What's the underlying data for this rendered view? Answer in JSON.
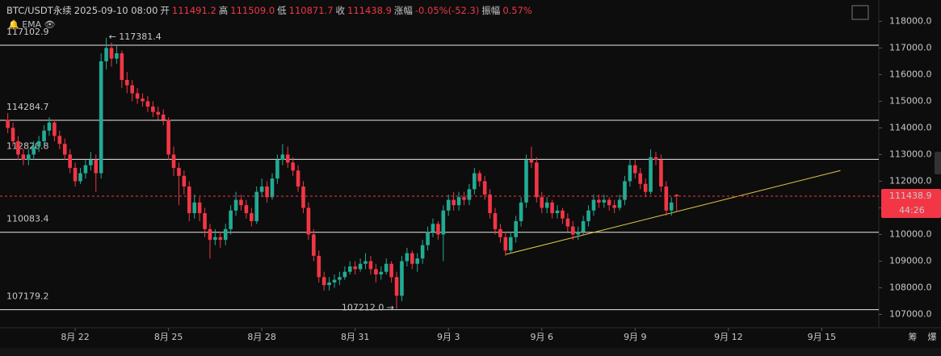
{
  "header": {
    "symbol": "BTC/USDT永续",
    "time": "2025-09-10 08:00",
    "fields": [
      {
        "label": "开",
        "value": "111491.2"
      },
      {
        "label": "高",
        "value": "111509.0"
      },
      {
        "label": "低",
        "value": "110871.7"
      },
      {
        "label": "收",
        "value": "111438.9"
      },
      {
        "label": "涨幅",
        "value": "-0.05%(-52.3)"
      },
      {
        "label": "振幅",
        "value": "0.57%"
      }
    ]
  },
  "indicator": "EMA",
  "footer": [
    "筹",
    "爆"
  ],
  "chart_data": {
    "type": "candlestick",
    "up_color": "#22ab94",
    "down_color": "#f23645",
    "ylim": [
      106500,
      118800
    ],
    "yticks": [
      {
        "value": 107000,
        "label": "107000.0"
      },
      {
        "value": 108000,
        "label": "108000.0"
      },
      {
        "value": 109000,
        "label": "109000.0"
      },
      {
        "value": 110000,
        "label": "110000.0"
      },
      {
        "value": 111000,
        "label": "111000.0"
      },
      {
        "value": 112000,
        "label": "112000.0"
      },
      {
        "value": 113000,
        "label": "113000.0"
      },
      {
        "value": 114000,
        "label": "114000.0"
      },
      {
        "value": 115000,
        "label": "115000.0"
      },
      {
        "value": 116000,
        "label": "116000.0"
      },
      {
        "value": 117000,
        "label": "117000.0"
      },
      {
        "value": 118000,
        "label": "118000.0"
      }
    ],
    "xlim": [
      -1.5,
      168
    ],
    "xticks": [
      {
        "value": 13,
        "label": "8月 22"
      },
      {
        "value": 31,
        "label": "8月 25"
      },
      {
        "value": 49,
        "label": "8月 28"
      },
      {
        "value": 67,
        "label": "8月 31"
      },
      {
        "value": 85,
        "label": "9月 3"
      },
      {
        "value": 103,
        "label": "9月 6"
      },
      {
        "value": 121,
        "label": "9月 9"
      },
      {
        "value": 139,
        "label": "9月 12"
      },
      {
        "value": 157,
        "label": "9月 15"
      }
    ],
    "levels": [
      117102.9,
      114284.7,
      112820.8,
      110083.4,
      107179.2
    ],
    "high_note": {
      "index": 19,
      "value": 117381.4,
      "label": "← 117381.4"
    },
    "low_note": {
      "index": 75,
      "value": 107212.0,
      "label": "107212.0 →"
    },
    "last": {
      "value": 111438.9,
      "label": "111438.9"
    },
    "countdown": "44:26",
    "trendline": {
      "x": [
        96,
        160.6
      ],
      "y": [
        109250,
        112400
      ],
      "color": "#e6c84a"
    },
    "candles": [
      [
        114300,
        114550,
        113800,
        114000
      ],
      [
        114000,
        114200,
        113300,
        113500
      ],
      [
        113500,
        113700,
        112800,
        113000
      ],
      [
        113000,
        113200,
        112600,
        112800
      ],
      [
        112800,
        113200,
        112600,
        113000
      ],
      [
        113000,
        113500,
        112800,
        113300
      ],
      [
        113300,
        113700,
        113100,
        113500
      ],
      [
        113500,
        114100,
        113300,
        113900
      ],
      [
        113900,
        114400,
        113700,
        114200
      ],
      [
        114200,
        114300,
        113500,
        113700
      ],
      [
        113700,
        113900,
        113200,
        113400
      ],
      [
        113400,
        113600,
        112800,
        113000
      ],
      [
        113000,
        113200,
        112300,
        112500
      ],
      [
        112500,
        112700,
        111800,
        112000
      ],
      [
        112000,
        112500,
        111900,
        112300
      ],
      [
        112300,
        112800,
        112100,
        112600
      ],
      [
        112600,
        113100,
        112400,
        112800
      ],
      [
        112800,
        113000,
        111600,
        112300
      ],
      [
        112300,
        116800,
        112100,
        116500
      ],
      [
        116500,
        117381.4,
        116200,
        117000
      ],
      [
        117000,
        117200,
        116300,
        116600
      ],
      [
        116600,
        117100,
        116400,
        116800
      ],
      [
        116800,
        116900,
        115500,
        115800
      ],
      [
        115800,
        116100,
        115300,
        115600
      ],
      [
        115600,
        115800,
        115000,
        115300
      ],
      [
        115300,
        115500,
        114900,
        115100
      ],
      [
        115100,
        115300,
        114800,
        115000
      ],
      [
        115000,
        115200,
        114600,
        114800
      ],
      [
        114800,
        115000,
        114400,
        114600
      ],
      [
        114600,
        114800,
        114300,
        114500
      ],
      [
        114500,
        114700,
        114100,
        114300
      ],
      [
        114300,
        114400,
        112800,
        113000
      ],
      [
        113000,
        113300,
        112200,
        112500
      ],
      [
        112500,
        112700,
        111100,
        112200
      ],
      [
        112200,
        112400,
        111500,
        111800
      ],
      [
        111800,
        112000,
        110500,
        110800
      ],
      [
        110800,
        111500,
        110600,
        111200
      ],
      [
        111200,
        111400,
        110500,
        110800
      ],
      [
        110800,
        111000,
        109900,
        110200
      ],
      [
        110200,
        110400,
        109100,
        109800
      ],
      [
        109800,
        110200,
        109600,
        109900
      ],
      [
        109900,
        110100,
        109500,
        109800
      ],
      [
        109800,
        110400,
        109600,
        110200
      ],
      [
        110200,
        111100,
        110000,
        110900
      ],
      [
        110900,
        111600,
        110700,
        111300
      ],
      [
        111300,
        111500,
        110900,
        111100
      ],
      [
        111100,
        111300,
        110600,
        110800
      ],
      [
        110800,
        111000,
        110300,
        110500
      ],
      [
        110500,
        111800,
        110400,
        111600
      ],
      [
        111600,
        112100,
        111400,
        111800
      ],
      [
        111800,
        112000,
        111200,
        111400
      ],
      [
        111400,
        112300,
        111300,
        112100
      ],
      [
        112100,
        113000,
        111900,
        112800
      ],
      [
        112800,
        113400,
        112600,
        113000
      ],
      [
        113000,
        113300,
        112500,
        112700
      ],
      [
        112700,
        112900,
        112200,
        112400
      ],
      [
        112400,
        112600,
        111600,
        111800
      ],
      [
        111800,
        112000,
        110800,
        111000
      ],
      [
        111000,
        111200,
        109800,
        110000
      ],
      [
        110000,
        110200,
        109000,
        109200
      ],
      [
        109200,
        109400,
        108200,
        108400
      ],
      [
        108400,
        108600,
        107900,
        108100
      ],
      [
        108100,
        108400,
        107900,
        108200
      ],
      [
        108200,
        108500,
        108000,
        108300
      ],
      [
        108300,
        108600,
        108100,
        108400
      ],
      [
        108400,
        108800,
        108300,
        108600
      ],
      [
        108600,
        109000,
        108500,
        108800
      ],
      [
        108800,
        109000,
        108500,
        108700
      ],
      [
        108700,
        109100,
        108600,
        108900
      ],
      [
        108900,
        109300,
        108700,
        109000
      ],
      [
        109000,
        109200,
        108500,
        108700
      ],
      [
        108700,
        108900,
        108200,
        108500
      ],
      [
        108500,
        108800,
        108300,
        108600
      ],
      [
        108600,
        109100,
        108500,
        108900
      ],
      [
        108900,
        109000,
        108200,
        108400
      ],
      [
        108400,
        108600,
        107212.0,
        107700
      ],
      [
        107700,
        109200,
        107500,
        109000
      ],
      [
        109000,
        109500,
        108800,
        109300
      ],
      [
        109300,
        109400,
        108700,
        108900
      ],
      [
        108900,
        109300,
        108600,
        109100
      ],
      [
        109100,
        109800,
        108900,
        109600
      ],
      [
        109600,
        110300,
        109400,
        110100
      ],
      [
        110100,
        110600,
        109900,
        110400
      ],
      [
        110400,
        110500,
        109800,
        110000
      ],
      [
        110000,
        111100,
        109000,
        110900
      ],
      [
        110900,
        111500,
        110700,
        111300
      ],
      [
        111300,
        111600,
        110900,
        111100
      ],
      [
        111100,
        111600,
        110900,
        111400
      ],
      [
        111400,
        111600,
        111100,
        111300
      ],
      [
        111300,
        111900,
        111100,
        111700
      ],
      [
        111700,
        112500,
        111500,
        112300
      ],
      [
        112300,
        112400,
        111800,
        112000
      ],
      [
        112000,
        112200,
        111300,
        111500
      ],
      [
        111500,
        111700,
        110600,
        110800
      ],
      [
        110800,
        111000,
        110000,
        110200
      ],
      [
        110200,
        110400,
        109700,
        109900
      ],
      [
        109900,
        110100,
        109200,
        109400
      ],
      [
        109400,
        110100,
        109300,
        109900
      ],
      [
        109900,
        110700,
        109700,
        110500
      ],
      [
        110500,
        111400,
        110300,
        111200
      ],
      [
        111200,
        113000,
        111000,
        112800
      ],
      [
        112800,
        113300,
        112500,
        112700
      ],
      [
        112700,
        112900,
        111200,
        111400
      ],
      [
        111400,
        111600,
        110800,
        111000
      ],
      [
        111000,
        111400,
        110800,
        111200
      ],
      [
        111200,
        111300,
        110600,
        110800
      ],
      [
        110800,
        111100,
        110600,
        110900
      ],
      [
        110900,
        111000,
        110400,
        110600
      ],
      [
        110600,
        110800,
        110100,
        110300
      ],
      [
        110300,
        110500,
        109800,
        110000
      ],
      [
        110000,
        110300,
        109800,
        110100
      ],
      [
        110100,
        110700,
        110000,
        110500
      ],
      [
        110500,
        111100,
        110300,
        110900
      ],
      [
        110900,
        111500,
        110700,
        111300
      ],
      [
        111300,
        111500,
        111000,
        111200
      ],
      [
        111200,
        111500,
        111000,
        111300
      ],
      [
        111300,
        111400,
        110900,
        111100
      ],
      [
        111100,
        111300,
        110800,
        111000
      ],
      [
        111000,
        111500,
        110900,
        111300
      ],
      [
        111300,
        112200,
        111100,
        112000
      ],
      [
        112000,
        112800,
        111800,
        112600
      ],
      [
        112600,
        112800,
        112100,
        112300
      ],
      [
        112300,
        112500,
        111700,
        111900
      ],
      [
        111900,
        112100,
        111400,
        111600
      ],
      [
        111600,
        113200,
        111500,
        112900
      ],
      [
        112900,
        113100,
        112600,
        112800
      ],
      [
        112800,
        113000,
        111600,
        111800
      ],
      [
        111800,
        112000,
        110700,
        110900
      ],
      [
        110900,
        111400,
        110700,
        111200
      ],
      [
        111491.2,
        111509.0,
        110871.7,
        111438.9
      ]
    ]
  }
}
